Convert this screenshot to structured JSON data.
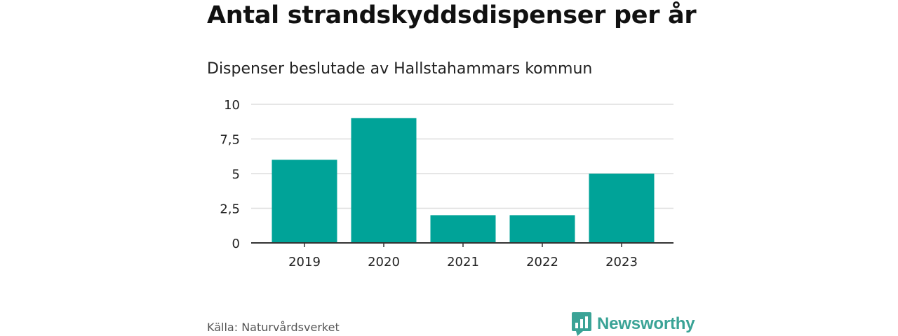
{
  "header": {
    "title": "Antal strandskyddsdispenser per år",
    "subtitle": "Dispenser beslutade av Hallstahammars kommun"
  },
  "footer": {
    "source": "Källa: Naturvårdsverket",
    "brand": "Newsworthy",
    "brand_icon": "newsworthy-logo-icon"
  },
  "colors": {
    "bar": "#00a398",
    "grid": "#dddddd",
    "axis": "#333333",
    "brand": "#3aa396"
  },
  "chart_data": {
    "type": "bar",
    "title": "Antal strandskyddsdispenser per år",
    "subtitle": "Dispenser beslutade av Hallstahammars kommun",
    "categories": [
      "2019",
      "2020",
      "2021",
      "2022",
      "2023"
    ],
    "values": [
      6,
      9,
      2,
      2,
      5
    ],
    "xlabel": "",
    "ylabel": "",
    "ylim": [
      0,
      10
    ],
    "yticks": [
      0,
      2.5,
      5,
      7.5,
      10
    ],
    "ytick_labels": [
      "0",
      "2,5",
      "5",
      "7,5",
      "10"
    ],
    "grid": true,
    "legend": "none"
  }
}
